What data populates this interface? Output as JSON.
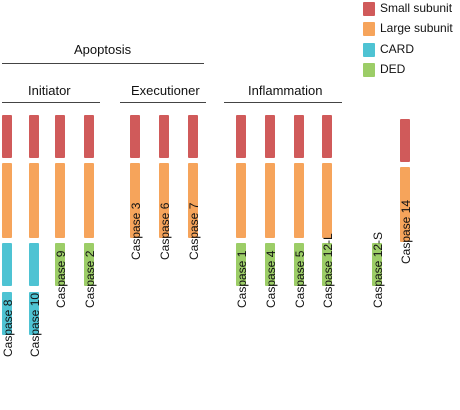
{
  "colors": {
    "small": "#d05a5a",
    "large": "#f6a45b",
    "card": "#4ec3d3",
    "ded": "#9ccd67"
  },
  "legend": [
    {
      "key": "small",
      "label": "Small subunit"
    },
    {
      "key": "large",
      "label": "Large subunit"
    },
    {
      "key": "card",
      "label": "CARD"
    },
    {
      "key": "ded",
      "label": "DED"
    }
  ],
  "groups": {
    "apoptosis": "Apoptosis",
    "initiator": "Initiator",
    "executioner": "Executioner",
    "inflammation": "Inflammation"
  },
  "caspases": [
    {
      "name": "Caspase 8",
      "domains": [
        "small",
        "large",
        "card",
        "card"
      ]
    },
    {
      "name": "Caspase 10",
      "domains": [
        "small",
        "large",
        "card",
        "card"
      ]
    },
    {
      "name": "Caspase 9",
      "domains": [
        "small",
        "large",
        "ded"
      ]
    },
    {
      "name": "Caspase 2",
      "domains": [
        "small",
        "large",
        "ded"
      ]
    },
    {
      "name": "Caspase 3",
      "domains": [
        "small",
        "large"
      ]
    },
    {
      "name": "Caspase 6",
      "domains": [
        "small",
        "large"
      ]
    },
    {
      "name": "Caspase 7",
      "domains": [
        "small",
        "large"
      ]
    },
    {
      "name": "Caspase 1",
      "domains": [
        "small",
        "large",
        "ded"
      ]
    },
    {
      "name": "Caspase 4",
      "domains": [
        "small",
        "large",
        "ded"
      ]
    },
    {
      "name": "Caspase 5",
      "domains": [
        "small",
        "large",
        "ded"
      ]
    },
    {
      "name": "Caspase 12-L",
      "domains": [
        "small",
        "large",
        "ded"
      ]
    },
    {
      "name": "Caspase 12-S",
      "domains": [
        "ded"
      ]
    },
    {
      "name": "Caspase 14",
      "domains": [
        "small",
        "large"
      ]
    }
  ]
}
